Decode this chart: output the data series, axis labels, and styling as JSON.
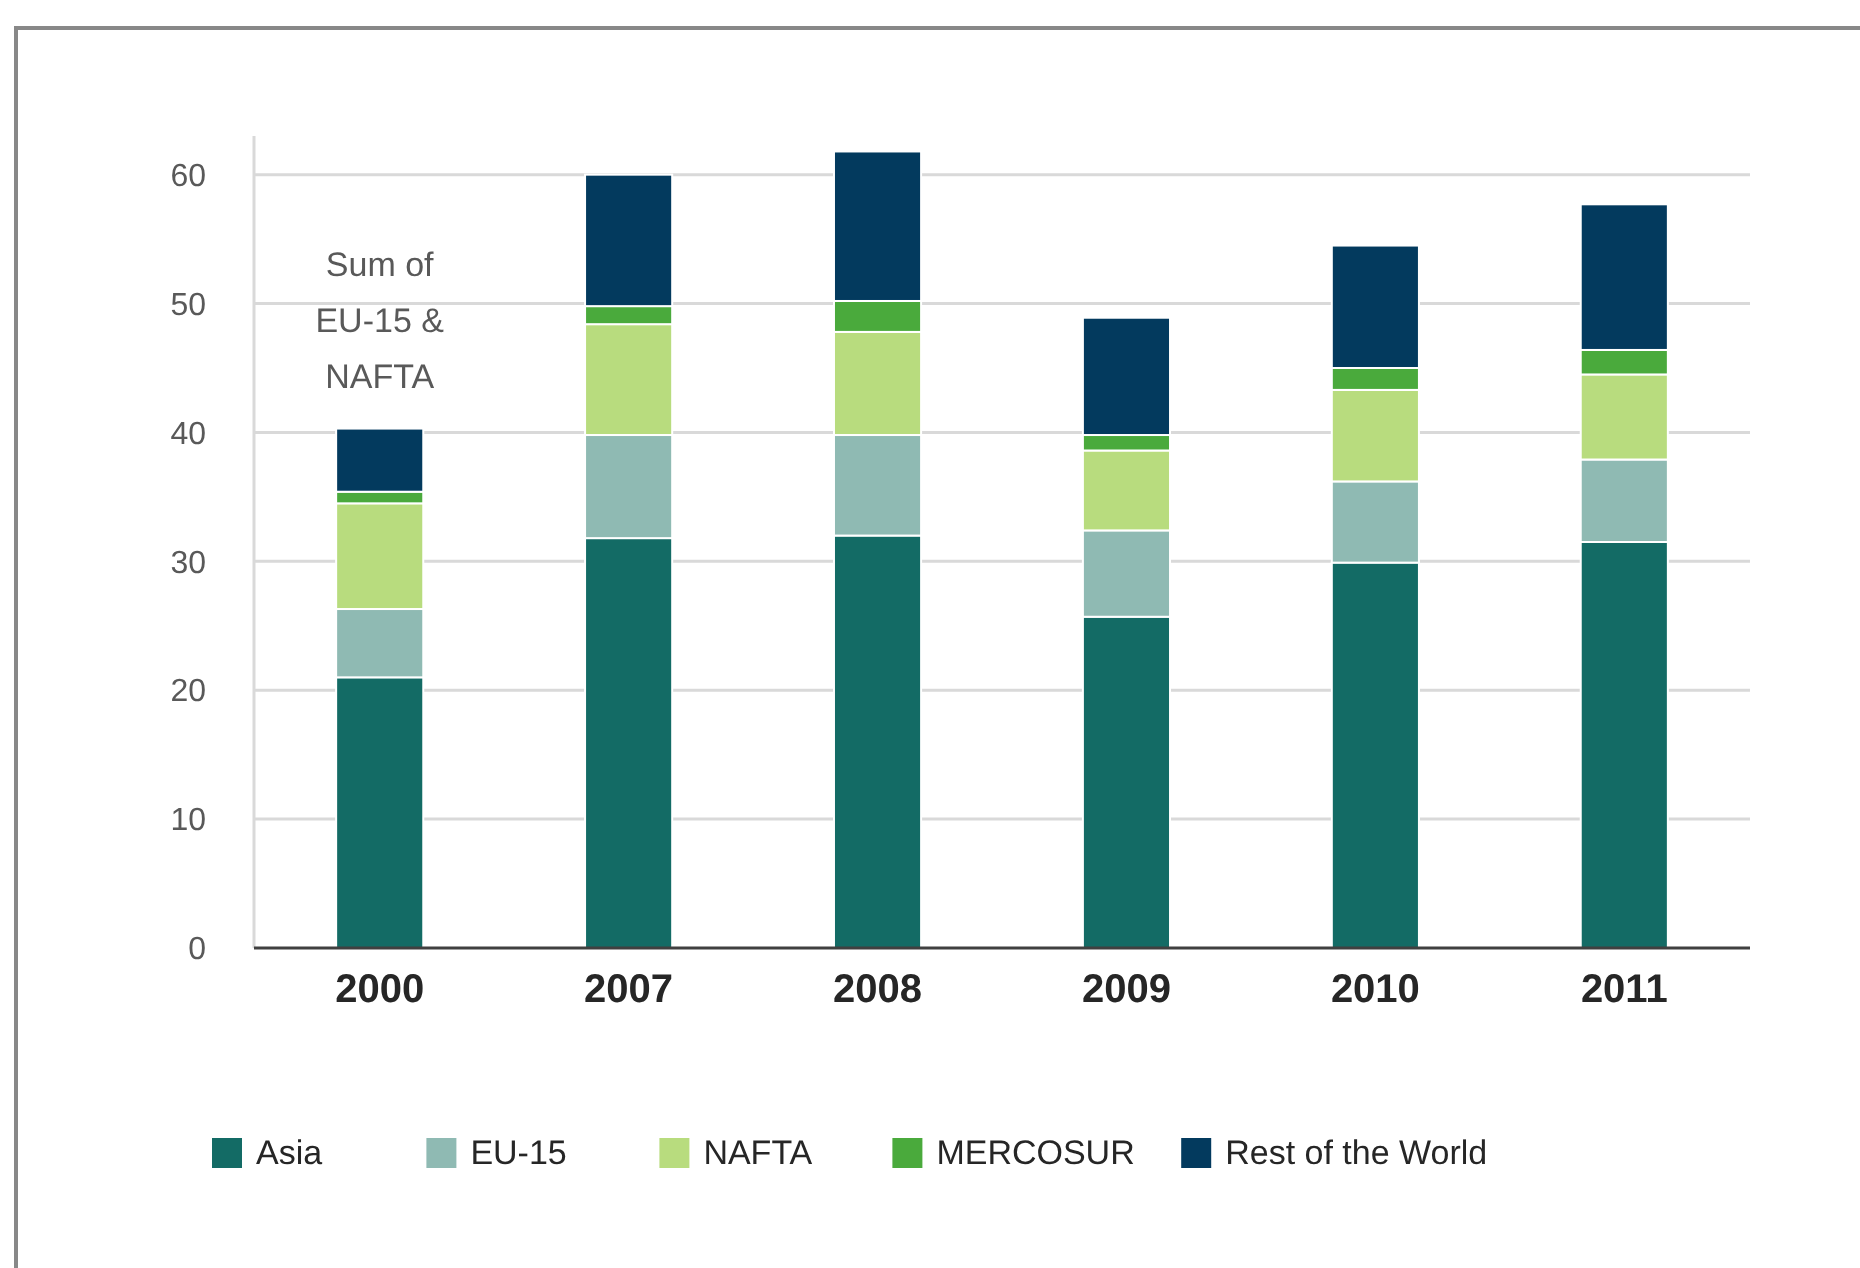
{
  "chart_data": {
    "type": "bar",
    "stacked": true,
    "categories": [
      "2000",
      "2007",
      "2008",
      "2009",
      "2010",
      "2011"
    ],
    "series": [
      {
        "name": "Asia",
        "color": "#136b65",
        "values": [
          21.0,
          31.8,
          32.0,
          25.7,
          29.9,
          31.5
        ]
      },
      {
        "name": "EU-15",
        "color": "#8fbab3",
        "values": [
          5.3,
          8.0,
          7.8,
          6.7,
          6.3,
          6.4
        ]
      },
      {
        "name": "NAFTA",
        "color": "#b8dc7e",
        "values": [
          8.2,
          8.6,
          8.0,
          6.2,
          7.1,
          6.6
        ]
      },
      {
        "name": "MERCOSUR",
        "color": "#4aaa3c",
        "values": [
          0.9,
          1.4,
          2.4,
          1.2,
          1.7,
          1.9
        ]
      },
      {
        "name": "Rest of the World",
        "color": "#033a5e",
        "values": [
          4.9,
          10.2,
          11.6,
          9.1,
          9.5,
          11.3
        ]
      }
    ],
    "ylim": [
      0,
      63
    ],
    "yticks": [
      0,
      10,
      20,
      30,
      40,
      50,
      60
    ],
    "grid": "y",
    "legend": "bottom",
    "annotations": [
      "Sum of EU-15 & NAFTA"
    ]
  }
}
